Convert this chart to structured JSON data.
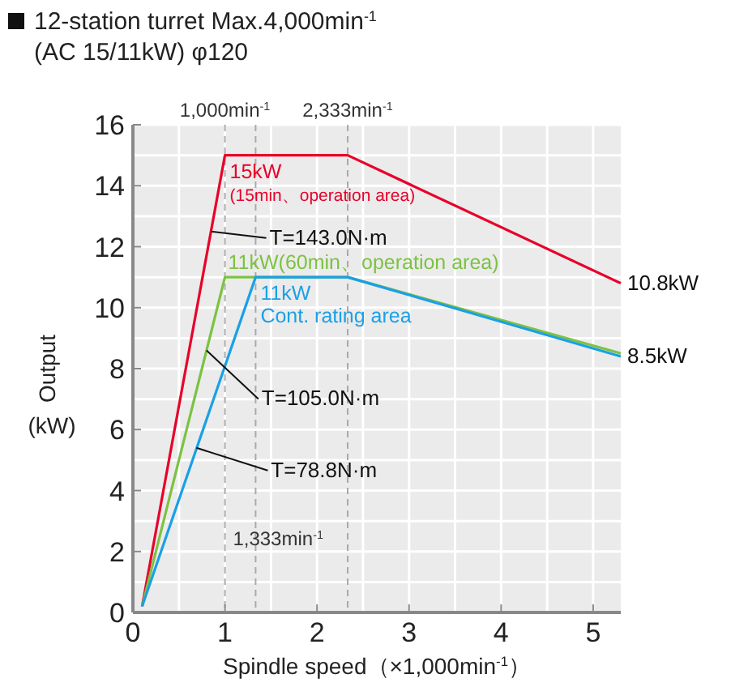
{
  "chart_data": {
    "type": "line",
    "title": "12-station turret Max.4,000min$^{-1}$",
    "subtitle": "(AC 15/11kW) φ120",
    "xlabel": "Spindle speed（×1,000min$^{-1}$）",
    "ylabel": "Output (kW)",
    "xlim": [
      0,
      5.3
    ],
    "ylim": [
      0,
      16
    ],
    "xticks": [
      0,
      1,
      2,
      3,
      4,
      5
    ],
    "yticks": [
      0,
      2,
      4,
      6,
      8,
      10,
      12,
      14,
      16
    ],
    "grid": true,
    "legend": false,
    "marker": "none",
    "line_style": "solid",
    "series": [
      {
        "name": "15kW (15min、operation area)",
        "color": "#e8002a",
        "x": [
          0.1,
          1.0,
          2.333,
          5.3
        ],
        "values": [
          0.2,
          15,
          15,
          10.8
        ]
      },
      {
        "name": "11kW(60min、operation area)",
        "color": "#7cc242",
        "x": [
          0.1,
          1.0,
          2.333,
          5.3
        ],
        "values": [
          0.2,
          11,
          11,
          8.5
        ]
      },
      {
        "name": "11kW Cont. rating area",
        "color": "#1aa0e6",
        "x": [
          0.1,
          1.333,
          2.333,
          5.3
        ],
        "values": [
          0.2,
          11,
          11,
          8.4
        ]
      }
    ],
    "ref_lines": [
      {
        "axis": "x",
        "value": 1.0,
        "label": "1,000min$^{-1}$",
        "color": "#aaaaaa",
        "line_style": "dashed"
      },
      {
        "axis": "x",
        "value": 2.333,
        "label": "2,333min$^{-1}$",
        "color": "#aaaaaa",
        "line_style": "dashed"
      },
      {
        "axis": "x",
        "value": 1.333,
        "label": "1,333min$^{-1}$",
        "color": "#aaaaaa",
        "line_style": "dashed"
      }
    ],
    "annotations": [
      {
        "text": "T=143.0N·m",
        "x": 0.85,
        "y": 12.5
      },
      {
        "text": "T=105.0N·m",
        "x": 0.8,
        "y": 8.6
      },
      {
        "text": "T=78.8N·m",
        "x": 0.69,
        "y": 5.4
      },
      {
        "text": "10.8kW",
        "x": 5.3,
        "y": 10.8
      },
      {
        "text": "8.5kW",
        "x": 5.3,
        "y": 8.5
      }
    ]
  }
}
